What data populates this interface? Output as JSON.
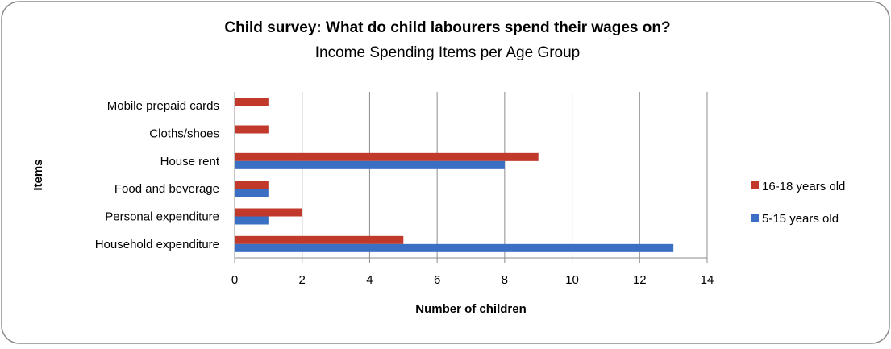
{
  "chart_data": {
    "type": "bar",
    "orientation": "horizontal",
    "title": "Child survey: What do child labourers spend their wages on?",
    "subtitle": "Income Spending Items per Age Group",
    "xlabel": "Number of children",
    "ylabel": "Items",
    "categories": [
      "Mobile prepaid cards",
      "Cloths/shoes",
      "House rent",
      "Food and beverage",
      "Personal expenditure",
      "Household expenditure"
    ],
    "series": [
      {
        "name": "16-18 years old",
        "color": "#c0392b",
        "values": [
          1,
          1,
          9,
          1,
          2,
          5
        ]
      },
      {
        "name": "5-15 years old",
        "color": "#3a6fc4",
        "values": [
          0,
          0,
          8,
          1,
          1,
          13
        ]
      }
    ],
    "xlim": [
      0,
      14
    ],
    "xticks": [
      "0",
      "2",
      "4",
      "6",
      "8",
      "10",
      "12",
      "14"
    ],
    "grid": "vertical",
    "legend": "right"
  }
}
